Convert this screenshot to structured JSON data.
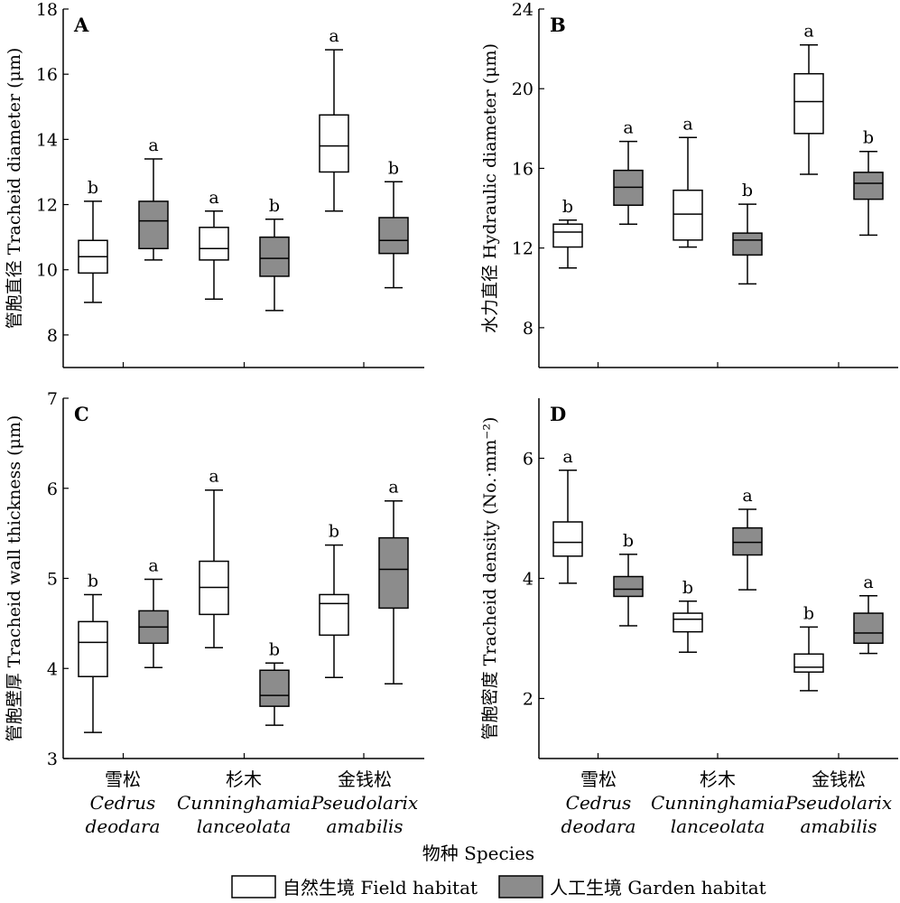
{
  "figure": {
    "xlabel": "物种 Species",
    "categories": [
      {
        "cn": "雪松",
        "latin1": "Cedrus",
        "latin2": "deodara"
      },
      {
        "cn": "杉木",
        "latin1": "Cunninghamia",
        "latin2": "lanceolata"
      },
      {
        "cn": "金钱松",
        "latin1": "Pseudolarix",
        "latin2": "amabilis"
      }
    ],
    "legend": [
      {
        "label": "自然生境 Field habitat",
        "color": "#ffffff"
      },
      {
        "label": "人工生境 Garden habitat",
        "color": "#8c8c8c"
      }
    ],
    "colors": {
      "field": "#ffffff",
      "garden": "#8c8c8c",
      "line": "#000000"
    }
  },
  "chart_data": [
    {
      "type": "box",
      "panel": "A",
      "ylabel": "管胞直径 Tracheid diameter (μm)",
      "ylim": [
        7,
        18
      ],
      "yticks": [
        8,
        10,
        12,
        14,
        16,
        18
      ],
      "categories": [
        "雪松 Cedrus deodara",
        "杉木 Cunninghamia lanceolata",
        "金钱松 Pseudolarix amabilis"
      ],
      "series": [
        {
          "name": "自然生境 Field habitat",
          "boxes": [
            {
              "min": 9.0,
              "q1": 9.9,
              "median": 10.4,
              "q3": 10.9,
              "max": 12.1,
              "sig": "b"
            },
            {
              "min": 9.1,
              "q1": 10.3,
              "median": 10.65,
              "q3": 11.3,
              "max": 11.8,
              "sig": "a"
            },
            {
              "min": 11.8,
              "q1": 13.0,
              "median": 13.8,
              "q3": 14.75,
              "max": 16.75,
              "sig": "a"
            }
          ]
        },
        {
          "name": "人工生境 Garden habitat",
          "boxes": [
            {
              "min": 10.3,
              "q1": 10.65,
              "median": 11.5,
              "q3": 12.1,
              "max": 13.4,
              "sig": "a"
            },
            {
              "min": 8.75,
              "q1": 9.8,
              "median": 10.35,
              "q3": 11.0,
              "max": 11.55,
              "sig": "b"
            },
            {
              "min": 9.45,
              "q1": 10.5,
              "median": 10.9,
              "q3": 11.6,
              "max": 12.7,
              "sig": "b"
            }
          ]
        }
      ]
    },
    {
      "type": "box",
      "panel": "B",
      "ylabel": "水力直径 Hydraulic diameter (μm)",
      "ylim": [
        6,
        24
      ],
      "yticks": [
        8,
        12,
        16,
        20,
        24
      ],
      "categories": [
        "雪松 Cedrus deodara",
        "杉木 Cunninghamia lanceolata",
        "金钱松 Pseudolarix amabilis"
      ],
      "series": [
        {
          "name": "自然生境 Field habitat",
          "boxes": [
            {
              "min": 11.0,
              "q1": 12.05,
              "median": 12.8,
              "q3": 13.2,
              "max": 13.4,
              "sig": "b"
            },
            {
              "min": 12.05,
              "q1": 12.4,
              "median": 13.7,
              "q3": 14.9,
              "max": 17.55,
              "sig": "a"
            },
            {
              "min": 15.7,
              "q1": 17.75,
              "median": 19.35,
              "q3": 20.75,
              "max": 22.2,
              "sig": "a"
            }
          ]
        },
        {
          "name": "人工生境 Garden habitat",
          "boxes": [
            {
              "min": 13.2,
              "q1": 14.15,
              "median": 15.05,
              "q3": 15.9,
              "max": 17.35,
              "sig": "a"
            },
            {
              "min": 10.2,
              "q1": 11.65,
              "median": 12.4,
              "q3": 12.75,
              "max": 14.2,
              "sig": "b"
            },
            {
              "min": 12.65,
              "q1": 14.45,
              "median": 15.25,
              "q3": 15.8,
              "max": 16.85,
              "sig": "b"
            }
          ]
        }
      ]
    },
    {
      "type": "box",
      "panel": "C",
      "ylabel": "管胞壁厚 Tracheid wall thickness (μm)",
      "ylim": [
        3,
        7
      ],
      "yticks": [
        3,
        4,
        5,
        6,
        7
      ],
      "categories": [
        "雪松 Cedrus deodara",
        "杉木 Cunninghamia lanceolata",
        "金钱松 Pseudolarix amabilis"
      ],
      "series": [
        {
          "name": "自然生境 Field habitat",
          "boxes": [
            {
              "min": 3.29,
              "q1": 3.91,
              "median": 4.29,
              "q3": 4.52,
              "max": 4.82,
              "sig": "b"
            },
            {
              "min": 4.23,
              "q1": 4.6,
              "median": 4.9,
              "q3": 5.19,
              "max": 5.98,
              "sig": "a"
            },
            {
              "min": 3.9,
              "q1": 4.37,
              "median": 4.72,
              "q3": 4.82,
              "max": 5.37,
              "sig": "b"
            }
          ]
        },
        {
          "name": "人工生境 Garden habitat",
          "boxes": [
            {
              "min": 4.01,
              "q1": 4.28,
              "median": 4.46,
              "q3": 4.64,
              "max": 4.99,
              "sig": "a"
            },
            {
              "min": 3.37,
              "q1": 3.58,
              "median": 3.7,
              "q3": 3.98,
              "max": 4.06,
              "sig": "b"
            },
            {
              "min": 3.83,
              "q1": 4.67,
              "median": 5.1,
              "q3": 5.45,
              "max": 5.86,
              "sig": "a"
            }
          ]
        }
      ]
    },
    {
      "type": "box",
      "panel": "D",
      "ylabel": "管胞密度 Tracheid density (No.·mm⁻²)",
      "ylim": [
        1,
        7
      ],
      "yticks": [
        2,
        4,
        6
      ],
      "categories": [
        "雪松 Cedrus deodara",
        "杉木 Cunninghamia lanceolata",
        "金钱松 Pseudolarix amabilis"
      ],
      "series": [
        {
          "name": "自然生境 Field habitat",
          "boxes": [
            {
              "min": 3.92,
              "q1": 4.37,
              "median": 4.6,
              "q3": 4.94,
              "max": 5.8,
              "sig": "a"
            },
            {
              "min": 2.77,
              "q1": 3.11,
              "median": 3.32,
              "q3": 3.42,
              "max": 3.62,
              "sig": "b"
            },
            {
              "min": 2.13,
              "q1": 2.44,
              "median": 2.52,
              "q3": 2.74,
              "max": 3.19,
              "sig": "b"
            }
          ]
        },
        {
          "name": "人工生境 Garden habitat",
          "boxes": [
            {
              "min": 3.21,
              "q1": 3.7,
              "median": 3.82,
              "q3": 4.03,
              "max": 4.4,
              "sig": "b"
            },
            {
              "min": 3.81,
              "q1": 4.39,
              "median": 4.6,
              "q3": 4.84,
              "max": 5.15,
              "sig": "a"
            },
            {
              "min": 2.75,
              "q1": 2.92,
              "median": 3.09,
              "q3": 3.42,
              "max": 3.71,
              "sig": "a"
            }
          ]
        }
      ]
    }
  ]
}
